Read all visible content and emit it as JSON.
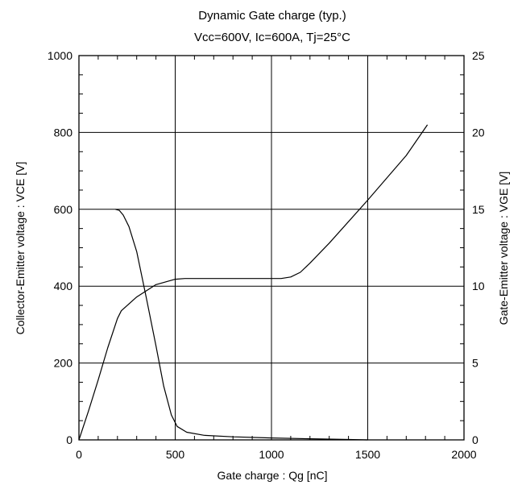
{
  "chart_data": {
    "type": "line",
    "title": "Dynamic Gate charge (typ.)",
    "subtitle": "Vcc=600V, Ic=600A, Tj=25°C",
    "xlabel": "Gate charge : Qg [nC]",
    "ylabel": "Collector-Emitter voltage : VCE [V]",
    "y2label": "Gate-Emitter voltage : VGE [V]",
    "xlim": [
      0,
      2000
    ],
    "ylim": [
      0,
      1000
    ],
    "y2lim": [
      0,
      25
    ],
    "xticks": [
      "0",
      "500",
      "1000",
      "1500",
      "2000"
    ],
    "yticks": [
      "0",
      "200",
      "400",
      "600",
      "800",
      "1000"
    ],
    "y2ticks": [
      "0",
      "5",
      "10",
      "15",
      "20",
      "25"
    ],
    "grid": true,
    "series": [
      {
        "axis": "left",
        "color": "#000000",
        "x": [
          190,
          210,
          230,
          260,
          300,
          350,
          400,
          440,
          480,
          510,
          560,
          650,
          800,
          1000,
          1200,
          1400,
          1500
        ],
        "y": [
          600,
          597,
          585,
          555,
          490,
          370,
          245,
          140,
          65,
          35,
          20,
          12,
          8,
          5,
          3,
          1,
          0
        ]
      },
      {
        "axis": "right",
        "color": "#000000",
        "x": [
          0,
          50,
          100,
          150,
          200,
          220,
          300,
          400,
          500,
          550,
          800,
          1050,
          1100,
          1150,
          1200,
          1300,
          1500,
          1700,
          1810
        ],
        "y": [
          0,
          1.9,
          3.9,
          6.0,
          7.9,
          8.4,
          9.3,
          10.1,
          10.45,
          10.5,
          10.5,
          10.5,
          10.6,
          10.9,
          11.5,
          12.8,
          15.6,
          18.5,
          20.5
        ]
      }
    ]
  }
}
